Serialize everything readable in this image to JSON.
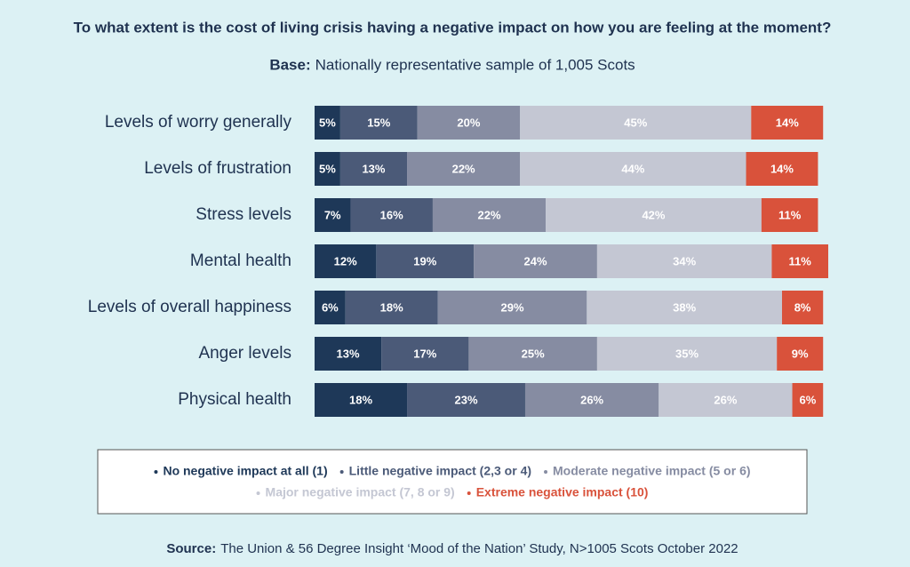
{
  "chart_data": {
    "type": "stacked-bar-horizontal",
    "title": "To what extent is the cost of living crisis having a negative impact on how you are feeling at the moment?",
    "base_label": "Base:",
    "base_text": "Nationally representative sample of 1,005 Scots",
    "source_label": "Source:",
    "source_text": "The Union & 56 Degree Insight ‘Mood of the Nation’ Study, N>1005 Scots October 2022",
    "categories": [
      "Levels of worry generally",
      "Levels of frustration",
      "Stress levels",
      "Mental health",
      "Levels of overall happiness",
      "Anger levels",
      "Physical health"
    ],
    "series": [
      {
        "name": "No negative impact at all (1)",
        "color": "#1e3858",
        "values": [
          5,
          5,
          7,
          12,
          6,
          13,
          18
        ],
        "value_labels": [
          "5%",
          "5%",
          "7%",
          "12%",
          "6%",
          "13%",
          "18%"
        ]
      },
      {
        "name": "Little negative impact (2,3 or 4)",
        "color": "#4b5a78",
        "values": [
          15,
          13,
          16,
          19,
          18,
          17,
          23
        ],
        "value_labels": [
          "15%",
          "13%",
          "16%",
          "19%",
          "18%",
          "17%",
          "23%"
        ]
      },
      {
        "name": "Moderate negative impact (5 or 6)",
        "color": "#868ca2",
        "values": [
          20,
          22,
          22,
          24,
          29,
          25,
          26
        ],
        "value_labels": [
          "20%",
          "22%",
          "22%",
          "24%",
          "29%",
          "25%",
          "26%"
        ]
      },
      {
        "name": "Major negative impact (7, 8 or 9)",
        "color": "#c4c7d3",
        "values": [
          45,
          44,
          42,
          34,
          38,
          35,
          26
        ],
        "value_labels": [
          "45%",
          "44%",
          "42%",
          "34%",
          "38%",
          "35%",
          "26%"
        ]
      },
      {
        "name": "Extreme negative impact (10)",
        "color": "#d9523b",
        "values": [
          14,
          14,
          11,
          11,
          8,
          9,
          6
        ],
        "value_labels": [
          "14%",
          "14%",
          "11%",
          "11%",
          "8%",
          "9%",
          "6%"
        ]
      }
    ]
  }
}
